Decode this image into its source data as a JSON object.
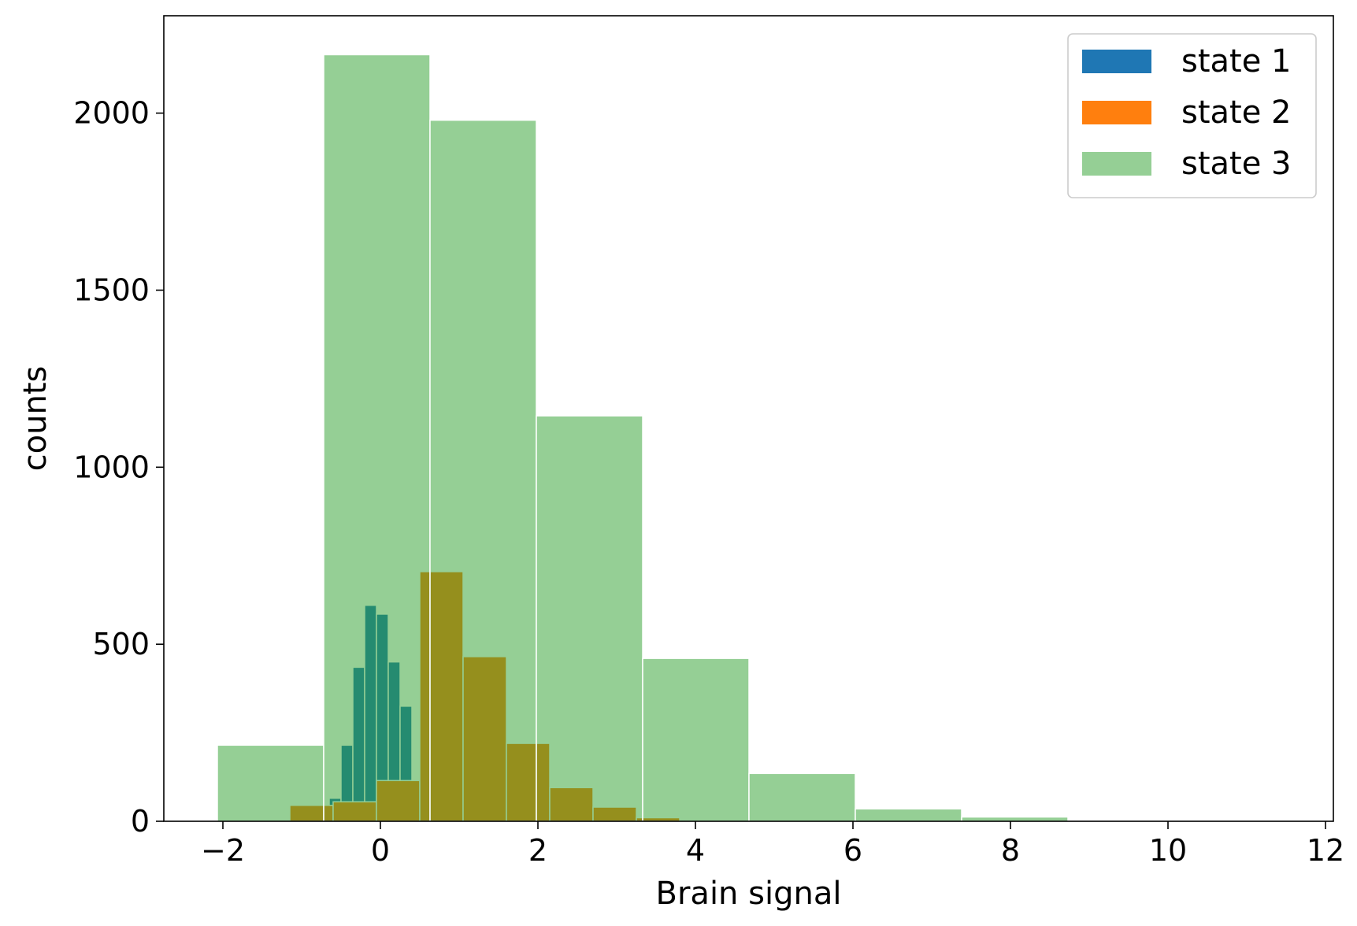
{
  "chart_data": {
    "type": "bar",
    "xlabel": "Brain signal",
    "ylabel": "counts",
    "xlim": [
      -2.75,
      12.1
    ],
    "ylim": [
      0,
      2275
    ],
    "x_ticks": [
      -2,
      0,
      2,
      4,
      6,
      8,
      10,
      12
    ],
    "x_tick_labels": [
      "−2",
      "0",
      "2",
      "4",
      "6",
      "8",
      "10",
      "12"
    ],
    "y_ticks": [
      0,
      500,
      1000,
      1500,
      2000
    ],
    "y_tick_labels": [
      "0",
      "500",
      "1000",
      "1500",
      "2000"
    ],
    "grid": false,
    "legend_position": "top-right",
    "series": [
      {
        "name": "state 1",
        "color": "#1f77b4",
        "opacity": 1.0,
        "bins": [
          {
            "x0": -0.65,
            "x1": -0.5,
            "value": 65
          },
          {
            "x0": -0.5,
            "x1": -0.35,
            "value": 215
          },
          {
            "x0": -0.35,
            "x1": -0.2,
            "value": 435
          },
          {
            "x0": -0.2,
            "x1": -0.05,
            "value": 610
          },
          {
            "x0": -0.05,
            "x1": 0.1,
            "value": 585
          },
          {
            "x0": 0.1,
            "x1": 0.25,
            "value": 450
          },
          {
            "x0": 0.25,
            "x1": 0.4,
            "value": 325
          }
        ]
      },
      {
        "name": "state 2",
        "color": "#ff7f0e",
        "opacity": 1.0,
        "bins": [
          {
            "x0": -1.15,
            "x1": -0.6,
            "value": 45
          },
          {
            "x0": -0.6,
            "x1": -0.05,
            "value": 55
          },
          {
            "x0": -0.05,
            "x1": 0.5,
            "value": 115
          },
          {
            "x0": 0.5,
            "x1": 1.05,
            "value": 705
          },
          {
            "x0": 1.05,
            "x1": 1.6,
            "value": 465
          },
          {
            "x0": 1.6,
            "x1": 2.15,
            "value": 220
          },
          {
            "x0": 2.15,
            "x1": 2.7,
            "value": 95
          },
          {
            "x0": 2.7,
            "x1": 3.25,
            "value": 40
          },
          {
            "x0": 3.25,
            "x1": 3.8,
            "value": 10
          }
        ]
      },
      {
        "name": "state 3",
        "color": "#2ca02c",
        "opacity": 0.5,
        "bins": [
          {
            "x0": -2.07,
            "x1": -0.72,
            "value": 215
          },
          {
            "x0": -0.72,
            "x1": 0.63,
            "value": 2165
          },
          {
            "x0": 0.63,
            "x1": 1.98,
            "value": 1980
          },
          {
            "x0": 1.98,
            "x1": 3.33,
            "value": 1145
          },
          {
            "x0": 3.33,
            "x1": 4.68,
            "value": 460
          },
          {
            "x0": 4.68,
            "x1": 6.03,
            "value": 135
          },
          {
            "x0": 6.03,
            "x1": 7.38,
            "value": 35
          },
          {
            "x0": 7.38,
            "x1": 8.73,
            "value": 12
          }
        ]
      }
    ]
  }
}
